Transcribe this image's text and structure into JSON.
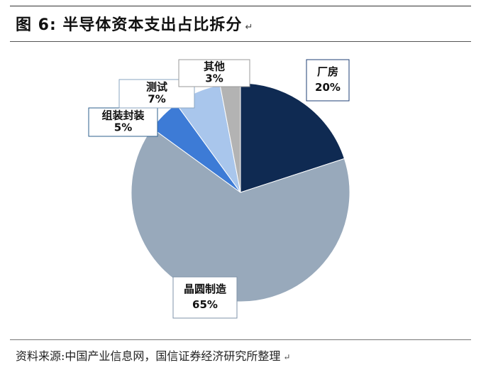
{
  "figure": {
    "title": "图 6: 半导体资本支出占比拆分",
    "title_mark": "↵",
    "source": "资料来源:中国产业信息网，国信证券经济研究所整理",
    "source_mark": "↵"
  },
  "chart_data": {
    "type": "pie",
    "title": "",
    "slices": [
      {
        "name": "厂房",
        "value": 20,
        "label": "20%",
        "color": "#0f2a52",
        "border": "#1f3f75"
      },
      {
        "name": "晶圆制造",
        "value": 65,
        "label": "65%",
        "color": "#98a9bb",
        "border": "#7f93aa"
      },
      {
        "name": "组装封装",
        "value": 5,
        "label": "5%",
        "color": "#3d7bd6",
        "border": "#2e5f8c"
      },
      {
        "name": "测试",
        "value": 7,
        "label": "7%",
        "color": "#a9c6ec",
        "border": "#8aa5c2"
      },
      {
        "name": "其他",
        "value": 3,
        "label": "3%",
        "color": "#b3b3b3",
        "border": "#9a9a9a"
      }
    ]
  }
}
